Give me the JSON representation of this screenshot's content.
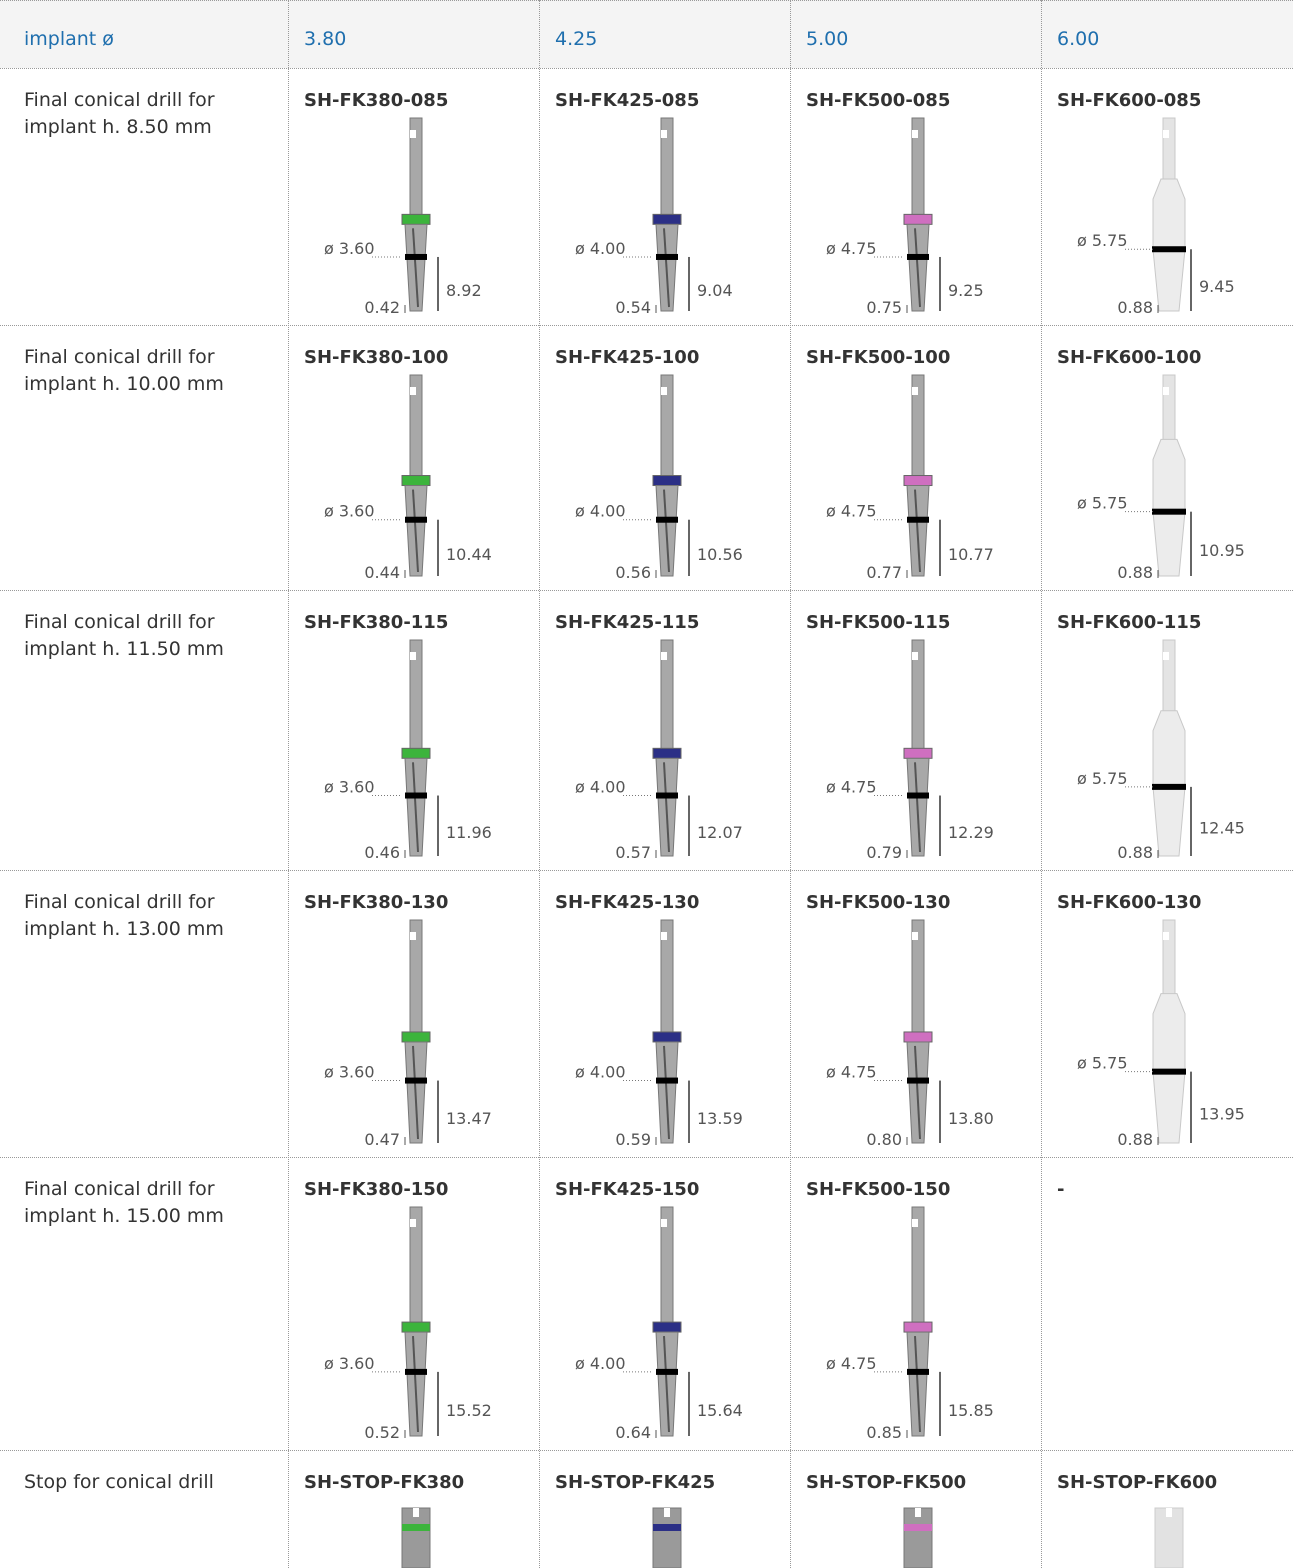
{
  "table": {
    "header": [
      "implant ø",
      "3.80",
      "4.25",
      "5.00",
      "6.00"
    ],
    "rows": [
      {
        "label": "Final conical drill for implant h. 8.50 mm",
        "cells": [
          {
            "code": "SH-FK380-085",
            "diameter": "ø 3.60",
            "tip": "0.42",
            "length": "8.92"
          },
          {
            "code": "SH-FK425-085",
            "diameter": "ø 4.00",
            "tip": "0.54",
            "length": "9.04"
          },
          {
            "code": "SH-FK500-085",
            "diameter": "ø 4.75",
            "tip": "0.75",
            "length": "9.25"
          },
          {
            "code": "SH-FK600-085",
            "diameter": "ø 5.75",
            "tip": "0.88",
            "length": "9.45"
          }
        ]
      },
      {
        "label": "Final conical drill for implant h. 10.00 mm",
        "cells": [
          {
            "code": "SH-FK380-100",
            "diameter": "ø 3.60",
            "tip": "0.44",
            "length": "10.44"
          },
          {
            "code": "SH-FK425-100",
            "diameter": "ø 4.00",
            "tip": "0.56",
            "length": "10.56"
          },
          {
            "code": "SH-FK500-100",
            "diameter": "ø 4.75",
            "tip": "0.77",
            "length": "10.77"
          },
          {
            "code": "SH-FK600-100",
            "diameter": "ø 5.75",
            "tip": "0.88",
            "length": "10.95"
          }
        ]
      },
      {
        "label": "Final conical drill for implant h. 11.50 mm",
        "cells": [
          {
            "code": "SH-FK380-115",
            "diameter": "ø 3.60",
            "tip": "0.46",
            "length": "11.96"
          },
          {
            "code": "SH-FK425-115",
            "diameter": "ø 4.00",
            "tip": "0.57",
            "length": "12.07"
          },
          {
            "code": "SH-FK500-115",
            "diameter": "ø 4.75",
            "tip": "0.79",
            "length": "12.29"
          },
          {
            "code": "SH-FK600-115",
            "diameter": "ø 5.75",
            "tip": "0.88",
            "length": "12.45"
          }
        ]
      },
      {
        "label": "Final conical drill for implant h. 13.00 mm",
        "cells": [
          {
            "code": "SH-FK380-130",
            "diameter": "ø 3.60",
            "tip": "0.47",
            "length": "13.47"
          },
          {
            "code": "SH-FK425-130",
            "diameter": "ø 4.00",
            "tip": "0.59",
            "length": "13.59"
          },
          {
            "code": "SH-FK500-130",
            "diameter": "ø 4.75",
            "tip": "0.80",
            "length": "13.80"
          },
          {
            "code": "SH-FK600-130",
            "diameter": "ø 5.75",
            "tip": "0.88",
            "length": "13.95"
          }
        ]
      },
      {
        "label": "Final conical drill for implant h. 15.00 mm",
        "cells": [
          {
            "code": "SH-FK380-150",
            "diameter": "ø 3.60",
            "tip": "0.52",
            "length": "15.52"
          },
          {
            "code": "SH-FK425-150",
            "diameter": "ø 4.00",
            "tip": "0.64",
            "length": "15.64"
          },
          {
            "code": "SH-FK500-150",
            "diameter": "ø 4.75",
            "tip": "0.85",
            "length": "15.85"
          },
          {
            "code": "-"
          }
        ]
      },
      {
        "label": "Stop for conical drill",
        "cells": [
          {
            "code": "SH-STOP-FK380"
          },
          {
            "code": "SH-STOP-FK425"
          },
          {
            "code": "SH-STOP-FK500"
          },
          {
            "code": "SH-STOP-FK600"
          }
        ]
      }
    ]
  }
}
